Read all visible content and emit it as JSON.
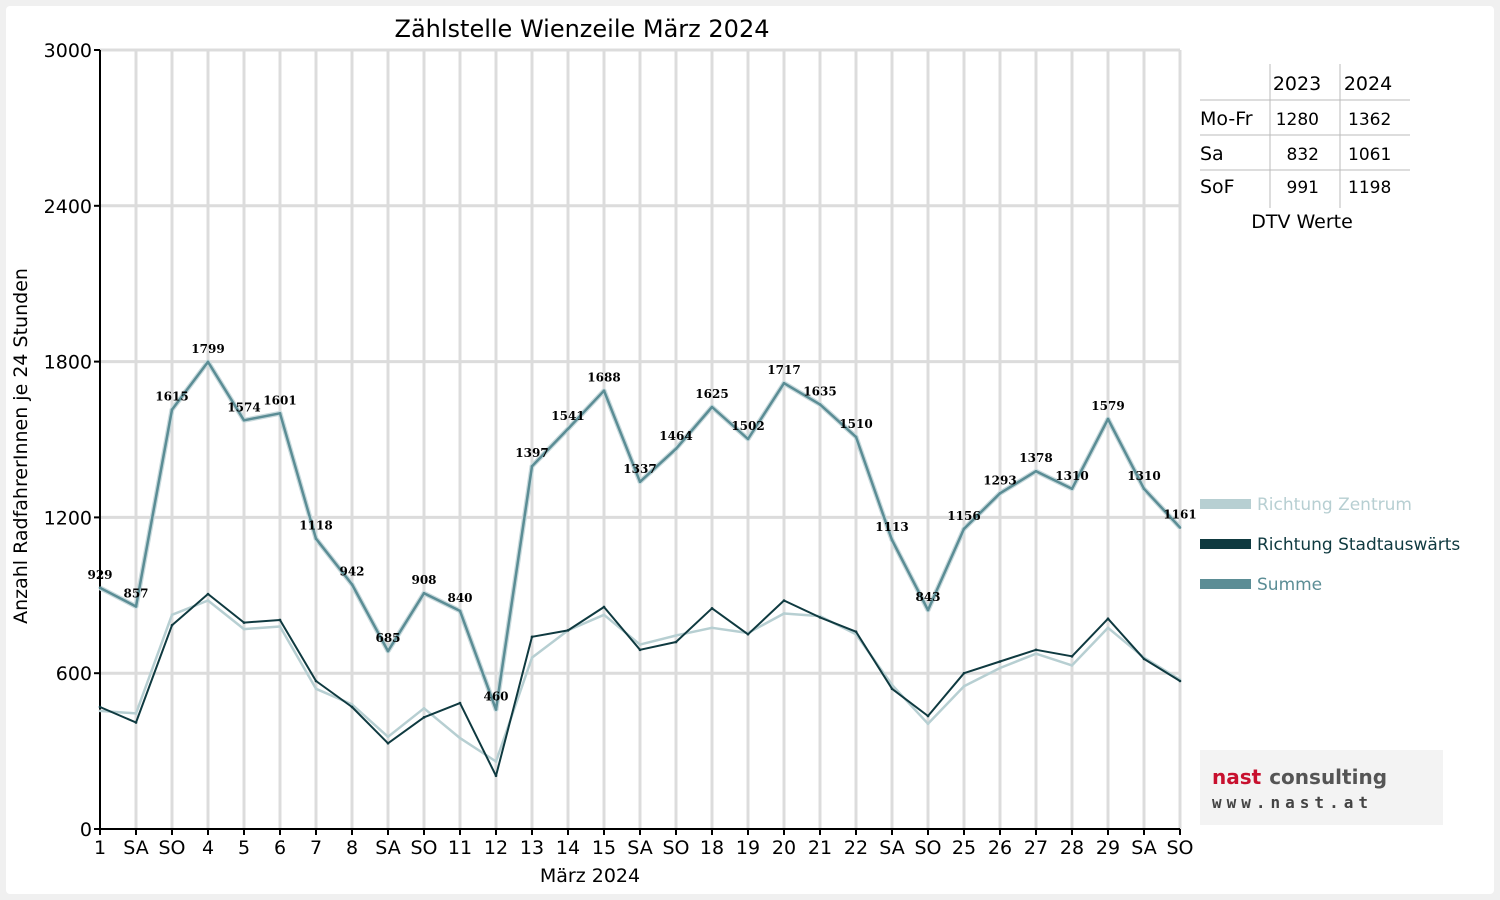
{
  "chart_data": {
    "type": "line",
    "title": "Zählstelle Wienzeile März 2024",
    "xlabel": "März 2024",
    "ylabel": "Anzahl RadfahrerInnen je 24 Stunden",
    "ylim": [
      0,
      3000
    ],
    "yticks": [
      0,
      600,
      1200,
      1800,
      2400,
      3000
    ],
    "grid": true,
    "legend_position": "right",
    "categories": [
      "1",
      "SA",
      "SO",
      "4",
      "5",
      "6",
      "7",
      "8",
      "SA",
      "SO",
      "11",
      "12",
      "13",
      "14",
      "15",
      "SA",
      "SO",
      "18",
      "19",
      "20",
      "21",
      "22",
      "SA",
      "SO",
      "25",
      "26",
      "27",
      "28",
      "29",
      "SA",
      "SO"
    ],
    "weekend_color": "#e60000",
    "series": [
      {
        "name": "Richtung Zentrum",
        "color": "#b7cfd2",
        "values": [
          455,
          445,
          825,
          880,
          770,
          780,
          540,
          480,
          355,
          465,
          350,
          260,
          660,
          765,
          825,
          710,
          745,
          775,
          755,
          830,
          820,
          750,
          555,
          405,
          550,
          620,
          675,
          630,
          775,
          660,
          575
        ]
      },
      {
        "name": "Richtung Stadtauswärts",
        "color": "#0f3a40",
        "values": [
          470,
          410,
          785,
          905,
          795,
          805,
          570,
          470,
          330,
          430,
          485,
          205,
          740,
          765,
          855,
          690,
          720,
          850,
          750,
          880,
          815,
          760,
          540,
          435,
          600,
          645,
          690,
          665,
          810,
          655,
          570
        ]
      },
      {
        "name": "Summe",
        "color": "#5b8d95",
        "values": [
          929,
          857,
          1615,
          1799,
          1574,
          1601,
          1118,
          942,
          685,
          908,
          840,
          460,
          1397,
          1541,
          1688,
          1337,
          1464,
          1625,
          1502,
          1717,
          1635,
          1510,
          1113,
          843,
          1156,
          1293,
          1378,
          1310,
          1579,
          1310,
          1161
        ]
      }
    ]
  },
  "dtv_table": {
    "caption": "DTV Werte",
    "columns": [
      "",
      "2023",
      "2024"
    ],
    "rows": [
      {
        "label": "Mo-Fr",
        "v2023": "1280",
        "v2024": "1362"
      },
      {
        "label": "Sa",
        "v2023": "832",
        "v2024": "1061"
      },
      {
        "label": "SoF",
        "v2023": "991",
        "v2024": "1198"
      }
    ]
  },
  "logo": {
    "line1a": "nast",
    "line1b": "consulting",
    "line2": "www.nast.at"
  }
}
